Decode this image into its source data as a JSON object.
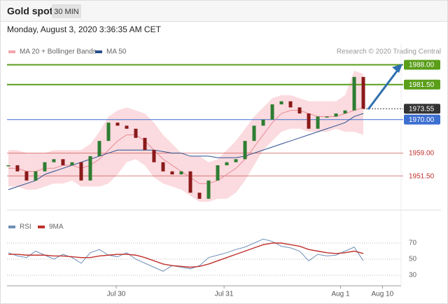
{
  "header": {
    "title": "Gold spot",
    "interval": "30 MIN",
    "timestamp": "Monday, August 3, 2020 3:36:35 AM CET"
  },
  "chart_data": [
    {
      "type": "candlestick",
      "source": "Research © 2020 Trading Central",
      "up_color": "#2e7d32",
      "down_color": "#8b1a1a",
      "close": [
        1955,
        1953,
        1950,
        1953,
        1956,
        1957,
        1955,
        1956,
        1950,
        1958,
        1963,
        1969,
        1968,
        1967,
        1964,
        1960,
        1956,
        1953,
        1952,
        1953,
        1946,
        1944,
        1950,
        1955,
        1956,
        1957,
        1963,
        1968,
        1970,
        1975,
        1976,
        1974,
        1972,
        1967,
        1971,
        1971,
        1972,
        1973,
        1984,
        1973.55
      ],
      "series": [
        {
          "name": "MA 20 + Bollinger Bands",
          "color": "#f4a6ae",
          "upper": [
            1960,
            1960,
            1959,
            1959,
            1959,
            1960,
            1960,
            1960,
            1960,
            1962,
            1966,
            1971,
            1973,
            1974,
            1973,
            1972,
            1969,
            1965,
            1962,
            1959,
            1958,
            1958,
            1956,
            1957,
            1960,
            1963,
            1967,
            1971,
            1974,
            1977,
            1978,
            1978,
            1977,
            1976,
            1976,
            1976,
            1976,
            1978,
            1986,
            1985
          ],
          "middle": [
            1954,
            1954,
            1953,
            1953,
            1954,
            1954,
            1955,
            1955,
            1954,
            1955,
            1957,
            1960,
            1963,
            1965,
            1965,
            1963,
            1960,
            1957,
            1955,
            1953,
            1951,
            1949,
            1949,
            1950,
            1952,
            1954,
            1957,
            1961,
            1965,
            1969,
            1972,
            1973,
            1973,
            1972,
            1971,
            1971,
            1971,
            1972,
            1973,
            1974
          ],
          "lower": [
            1948,
            1948,
            1947,
            1947,
            1948,
            1949,
            1949,
            1950,
            1948,
            1948,
            1948,
            1949,
            1952,
            1956,
            1957,
            1955,
            1951,
            1949,
            1948,
            1947,
            1945,
            1943,
            1943,
            1944,
            1944,
            1946,
            1950,
            1955,
            1960,
            1963,
            1966,
            1967,
            1967,
            1966,
            1966,
            1966,
            1967,
            1966,
            1966,
            1965
          ]
        },
        {
          "name": "MA 50",
          "color": "#2a4f8f",
          "values": [
            1947,
            1948,
            1949,
            1950,
            1952,
            1953,
            1954,
            1955,
            1956,
            1957,
            1958,
            1959,
            1960,
            1960,
            1960,
            1960,
            1960,
            1959.5,
            1959,
            1959,
            1958,
            1958,
            1958,
            1957.5,
            1957.5,
            1957.5,
            1958,
            1959,
            1960,
            1961,
            1962,
            1963,
            1964,
            1965,
            1966,
            1967,
            1968,
            1969,
            1971,
            1972
          ]
        }
      ],
      "levels": [
        {
          "value": 1988,
          "label": "1988.00",
          "color": "#5a9e1a",
          "box": true,
          "line": "solid"
        },
        {
          "value": 1981.5,
          "label": "1981.50",
          "color": "#5a9e1a",
          "box": true,
          "line": "solid"
        },
        {
          "value": 1973.55,
          "label": "1973.55",
          "color": "#333333",
          "box": true,
          "line": "dotted"
        },
        {
          "value": 1970,
          "label": "1970.00",
          "color": "#3d6fd1",
          "box": true,
          "line": "solid"
        },
        {
          "value": 1959,
          "label": "1959.00",
          "color": "#c0302c",
          "box": false,
          "line": "solid"
        },
        {
          "value": 1951.5,
          "label": "1951.50",
          "color": "#c0302c",
          "box": false,
          "line": "solid"
        }
      ],
      "xlim": [
        -0.15,
        43.15
      ],
      "ylim": [
        1942,
        1995
      ]
    },
    {
      "type": "line",
      "series": [
        {
          "name": "RSI",
          "color": "#6f8fb8",
          "values": [
            58,
            54,
            52,
            60,
            55,
            50,
            56,
            52,
            45,
            58,
            62,
            55,
            53,
            58,
            50,
            45,
            40,
            35,
            42,
            40,
            38,
            42,
            52,
            55,
            58,
            62,
            65,
            70,
            75,
            72,
            66,
            64,
            60,
            48,
            56,
            54,
            55,
            60,
            65,
            48
          ]
        },
        {
          "name": "9MA",
          "color": "#c0302c",
          "values": [
            56,
            56,
            55,
            55,
            55,
            54,
            54,
            53,
            52,
            52,
            54,
            55,
            56,
            56,
            55,
            52,
            48,
            44,
            42,
            41,
            40,
            41,
            44,
            48,
            52,
            56,
            60,
            64,
            68,
            70,
            70,
            68,
            66,
            62,
            60,
            58,
            57,
            58,
            60,
            57
          ]
        }
      ],
      "xlim": [
        -0.15,
        43.15
      ],
      "ylim": [
        20,
        90
      ],
      "yticks": [
        30,
        50,
        70
      ],
      "xticks": [
        {
          "value": 11.85,
          "label": "Jul 30"
        },
        {
          "value": 23.7,
          "label": "Jul 31"
        },
        {
          "value": 36.5,
          "label": "Aug 1"
        },
        {
          "value": 41.1,
          "label": "Aug 10"
        }
      ]
    }
  ]
}
